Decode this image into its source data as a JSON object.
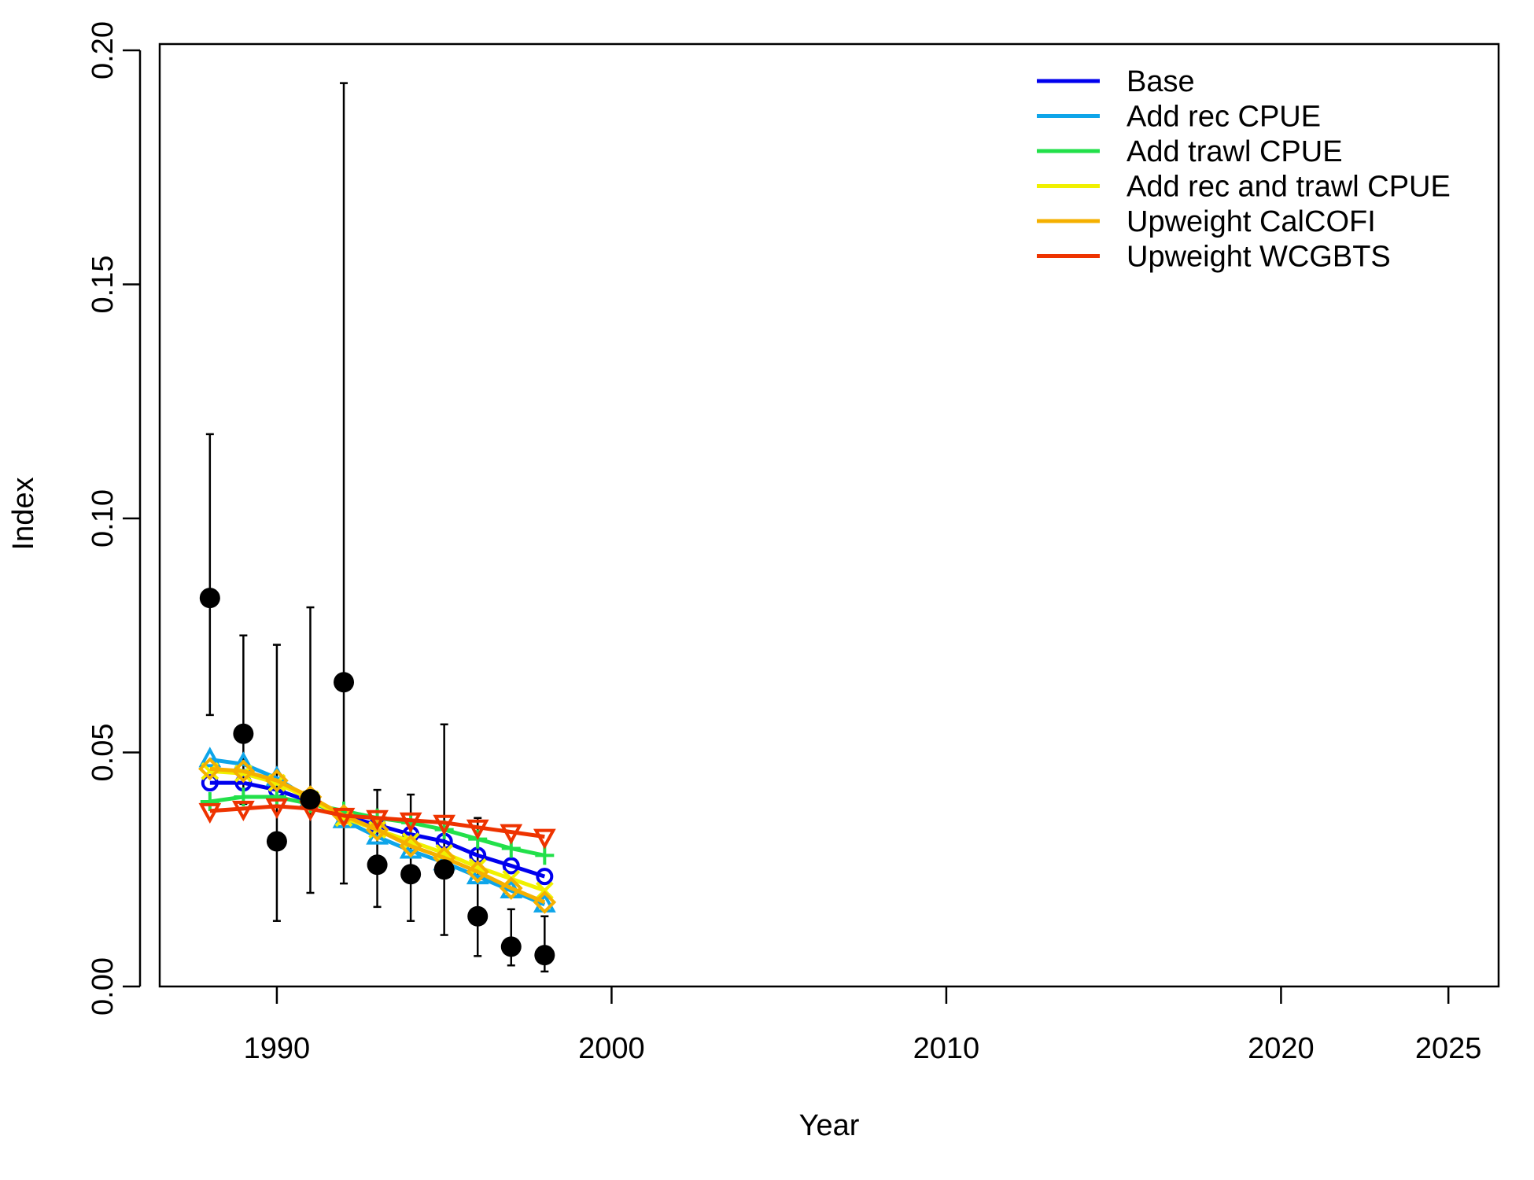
{
  "chart_data": {
    "type": "line",
    "xlabel": "Year",
    "ylabel": "Index",
    "xlim": [
      1986.5,
      2026.5
    ],
    "ylim": [
      0,
      0.2
    ],
    "x_ticks": [
      1990,
      2000,
      2010,
      2020,
      2025
    ],
    "y_ticks": [
      "0.00",
      "0.05",
      "0.10",
      "0.15",
      "0.20"
    ],
    "legend_position": "top-right",
    "x": [
      1988,
      1989,
      1990,
      1991,
      1992,
      1993,
      1994,
      1995,
      1996,
      1997,
      1998
    ],
    "observed": {
      "values": [
        0.083,
        0.054,
        0.031,
        0.04,
        0.065,
        0.026,
        0.024,
        0.025,
        0.015,
        0.0085,
        0.0067
      ],
      "lower": [
        0.058,
        0.039,
        0.014,
        0.02,
        0.022,
        0.017,
        0.014,
        0.011,
        0.0065,
        0.0045,
        0.0032
      ],
      "upper": [
        0.118,
        0.075,
        0.073,
        0.081,
        0.193,
        0.042,
        0.041,
        0.056,
        0.036,
        0.0165,
        0.015
      ],
      "color": "#000000"
    },
    "series": [
      {
        "name": "Base",
        "color": "#0000ee",
        "marker": "circle",
        "values": [
          0.0435,
          0.0435,
          0.042,
          0.0395,
          0.0365,
          0.0345,
          0.0325,
          0.031,
          0.028,
          0.0258,
          0.0235
        ]
      },
      {
        "name": "Add rec CPUE",
        "color": "#0ea5e9",
        "marker": "triangle-up",
        "values": [
          0.0485,
          0.0475,
          0.0445,
          0.04,
          0.0355,
          0.032,
          0.029,
          0.0265,
          0.0235,
          0.0205,
          0.0175
        ]
      },
      {
        "name": "Add trawl CPUE",
        "color": "#22e04a",
        "marker": "plus",
        "values": [
          0.0395,
          0.0405,
          0.0405,
          0.039,
          0.0375,
          0.036,
          0.035,
          0.0335,
          0.0315,
          0.0295,
          0.028
        ]
      },
      {
        "name": "Add rec and trawl CPUE",
        "color": "#f0f000",
        "marker": "x",
        "values": [
          0.046,
          0.0455,
          0.0435,
          0.04,
          0.036,
          0.0335,
          0.031,
          0.0285,
          0.0255,
          0.023,
          0.0205
        ]
      },
      {
        "name": "Upweight CalCOFI",
        "color": "#f5b000",
        "marker": "diamond",
        "values": [
          0.0465,
          0.046,
          0.044,
          0.0405,
          0.0365,
          0.0335,
          0.03,
          0.0275,
          0.0245,
          0.021,
          0.018
        ]
      },
      {
        "name": "Upweight WCGBTS",
        "color": "#ee3300",
        "marker": "triangle-down",
        "values": [
          0.0375,
          0.038,
          0.0385,
          0.038,
          0.0365,
          0.036,
          0.0355,
          0.035,
          0.034,
          0.033,
          0.032
        ]
      }
    ]
  }
}
